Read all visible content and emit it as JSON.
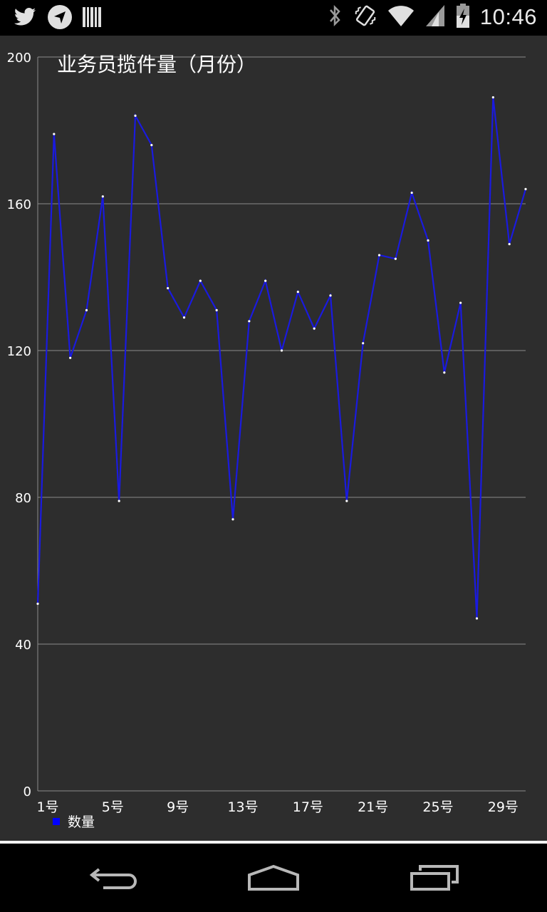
{
  "status_bar": {
    "time": "10:46",
    "left_icons": [
      "twitter-icon",
      "location-pin-icon",
      "barcode-icon"
    ],
    "right_icons": [
      "bluetooth-icon",
      "vibrate-icon",
      "wifi-icon",
      "cell-signal-icon",
      "battery-charging-icon"
    ]
  },
  "chart_data": {
    "type": "line",
    "title": "业务员揽件量（月份）",
    "xlabel": "",
    "ylabel": "",
    "x": [
      1,
      2,
      3,
      4,
      5,
      6,
      7,
      8,
      9,
      10,
      11,
      12,
      13,
      14,
      15,
      16,
      17,
      18,
      19,
      20,
      21,
      22,
      23,
      24,
      25,
      26,
      27,
      28,
      29,
      30,
      31
    ],
    "x_tick_values": [
      1,
      5,
      9,
      13,
      17,
      21,
      25,
      29
    ],
    "x_tick_labels": [
      "1号",
      "5号",
      "9号",
      "13号",
      "17号",
      "21号",
      "25号",
      "29号"
    ],
    "y_ticks": [
      0,
      40,
      80,
      120,
      160,
      200
    ],
    "ylim": [
      0,
      200
    ],
    "xlim": [
      1,
      31
    ],
    "grid": "horizontal",
    "legend": "bottom-left",
    "line_color": "#1a1adf",
    "series": [
      {
        "name": "数量",
        "color": "#0000ff",
        "values": [
          51,
          179,
          118,
          131,
          162,
          79,
          184,
          176,
          137,
          129,
          139,
          131,
          74,
          128,
          139,
          120,
          136,
          126,
          135,
          79,
          122,
          146,
          145,
          163,
          150,
          114,
          133,
          47,
          189,
          149,
          164
        ]
      }
    ]
  },
  "nav_bar": {
    "buttons": [
      "back-icon",
      "home-icon",
      "recent-apps-icon"
    ]
  }
}
